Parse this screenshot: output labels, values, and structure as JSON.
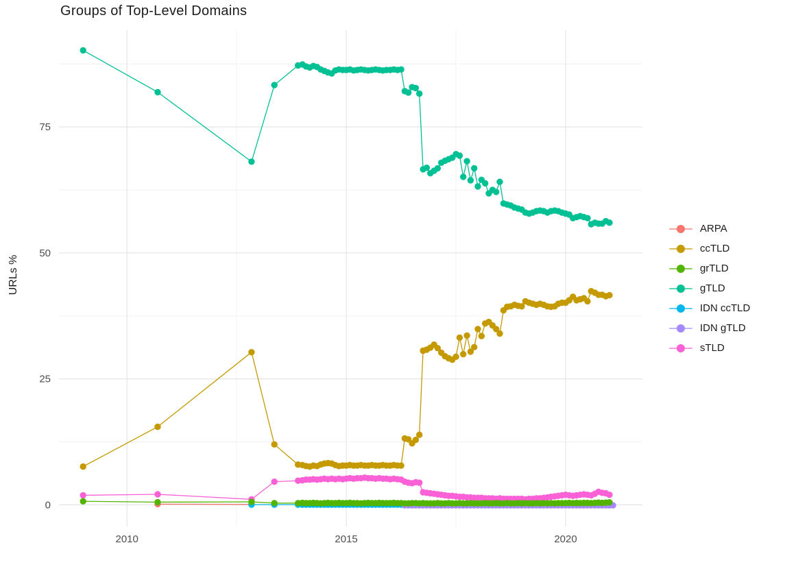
{
  "chart_data": {
    "type": "scatter",
    "title": "Groups of Top-Level Domains",
    "xlabel": "",
    "ylabel": "URLs %",
    "x_domain": [
      2008.45,
      2021.75
    ],
    "y_domain": [
      -4.3,
      94.2
    ],
    "grid": "on",
    "legend_position": "right",
    "x_ticks": [
      {
        "v": 2010,
        "label": "2010"
      },
      {
        "v": 2015,
        "label": "2015"
      },
      {
        "v": 2020,
        "label": "2020"
      }
    ],
    "x_minor": [
      2012.5,
      2017.5
    ],
    "y_ticks": [
      {
        "v": 0,
        "label": "0"
      },
      {
        "v": 25,
        "label": "25"
      },
      {
        "v": 50,
        "label": "50"
      },
      {
        "v": 75,
        "label": "75"
      }
    ],
    "y_minor": [
      12.5,
      37.5,
      62.5,
      87.5
    ],
    "draw_order": [
      "ARPA",
      "IDN ccTLD",
      "IDN gTLD",
      "sTLD",
      "ccTLD",
      "gTLD",
      "grTLD"
    ],
    "series": [
      {
        "name": "ARPA",
        "color": "#F8766D",
        "segments": [
          {
            "x": [
              2010.7,
              2012.84
            ],
            "y": [
              0.15,
              0.1
            ]
          }
        ]
      },
      {
        "name": "ccTLD",
        "color": "#C49A00",
        "segments": [
          {
            "x": [
              2009.0,
              2010.7,
              2012.84,
              2013.36,
              2013.9
            ],
            "y": [
              7.6,
              15.5,
              30.3,
              12.0,
              8.0
            ]
          },
          {
            "x_start": 2014.0,
            "x_step": 0.08333,
            "y": [
              7.9,
              7.7,
              7.6,
              7.8,
              7.7,
              8.0,
              8.2,
              8.3,
              8.2,
              7.9,
              7.7,
              7.8,
              7.8,
              7.9,
              7.8,
              7.8,
              7.9,
              7.8,
              7.8,
              7.9,
              7.8,
              7.8,
              7.9,
              7.8,
              7.8,
              7.9,
              7.8,
              7.8,
              13.2,
              13.0,
              12.2,
              12.9,
              13.9,
              30.6,
              30.8,
              31.2,
              31.8,
              31.1,
              30.2,
              29.5,
              29.1,
              28.8,
              29.4,
              33.2,
              29.9,
              33.6,
              30.4,
              31.3,
              34.9,
              33.5,
              36.0,
              36.3,
              35.6,
              34.9,
              34.0,
              38.6,
              39.3,
              39.4,
              39.7,
              39.5,
              39.4,
              40.4,
              40.1,
              39.9,
              39.7,
              39.9,
              39.7,
              39.4,
              39.3,
              39.4,
              39.9,
              40.1,
              40.1,
              40.6,
              41.3,
              40.6,
              40.8,
              41.0,
              40.4,
              42.4,
              42.1,
              41.7,
              41.7,
              41.4,
              41.6
            ]
          }
        ]
      },
      {
        "name": "grTLD",
        "color": "#53B400",
        "segments": [
          {
            "x": [
              2009.0,
              2010.7,
              2012.84,
              2013.36,
              2013.9
            ],
            "y": [
              0.7,
              0.55,
              0.6,
              0.35,
              0.35
            ]
          },
          {
            "x_start": 2014.0,
            "x_step": 0.08333,
            "y": [
              0.4,
              0.35,
              0.35,
              0.4,
              0.35,
              0.3,
              0.35,
              0.4,
              0.35,
              0.35,
              0.4,
              0.35,
              0.35,
              0.4,
              0.35,
              0.35,
              0.3,
              0.35,
              0.4,
              0.35,
              0.35,
              0.4,
              0.35,
              0.35,
              0.35,
              0.4,
              0.35,
              0.35,
              0.3,
              0.3,
              0.35,
              0.35,
              0.3,
              0.35,
              0.3,
              0.3,
              0.3,
              0.35,
              0.3,
              0.3,
              0.35,
              0.3,
              0.3,
              0.35,
              0.3,
              0.3,
              0.35,
              0.3,
              0.3,
              0.3,
              0.35,
              0.3,
              0.3,
              0.35,
              0.3,
              0.3,
              0.35,
              0.3,
              0.3,
              0.35,
              0.3,
              0.35,
              0.3,
              0.3,
              0.35,
              0.3,
              0.35,
              0.3,
              0.35,
              0.3,
              0.35,
              0.35,
              0.35,
              0.4,
              0.35,
              0.4,
              0.35,
              0.4,
              0.4,
              0.35,
              0.4,
              0.45,
              0.4,
              0.45,
              0.5
            ]
          }
        ]
      },
      {
        "name": "gTLD",
        "color": "#00C094",
        "segments": [
          {
            "x": [
              2009.0,
              2010.7,
              2012.84,
              2013.36,
              2013.9
            ],
            "y": [
              90.2,
              81.9,
              68.1,
              83.3,
              87.2
            ]
          },
          {
            "x_start": 2014.0,
            "x_step": 0.08333,
            "y": [
              87.4,
              87.0,
              86.8,
              87.1,
              86.9,
              86.4,
              86.1,
              85.8,
              85.6,
              86.2,
              86.4,
              86.3,
              86.3,
              86.4,
              86.2,
              86.3,
              86.4,
              86.3,
              86.2,
              86.3,
              86.4,
              86.3,
              86.2,
              86.3,
              86.3,
              86.4,
              86.3,
              86.4,
              82.1,
              81.8,
              82.9,
              82.7,
              81.6,
              66.6,
              66.9,
              65.8,
              66.3,
              66.8,
              67.9,
              68.3,
              68.6,
              68.9,
              69.6,
              69.3,
              65.1,
              68.2,
              64.4,
              66.8,
              63.2,
              64.5,
              63.8,
              61.8,
              62.5,
              62.1,
              64.1,
              59.8,
              59.6,
              59.4,
              59.0,
              58.8,
              58.6,
              58.0,
              57.8,
              58.0,
              58.3,
              58.4,
              58.3,
              58.0,
              58.3,
              58.4,
              58.3,
              58.0,
              57.8,
              57.6,
              56.9,
              57.1,
              57.3,
              57.1,
              56.9,
              55.7,
              56.0,
              55.8,
              55.8,
              56.3,
              56.0
            ]
          }
        ]
      },
      {
        "name": "IDN ccTLD",
        "color": "#00B6EB",
        "segments": [
          {
            "x": [
              2012.84,
              2013.36,
              2013.9
            ],
            "y": [
              0.05,
              0.05,
              0.05
            ]
          },
          {
            "x_start": 2014.0,
            "x_step": 0.08333,
            "n": 85,
            "y_const": 0.05
          }
        ]
      },
      {
        "name": "IDN gTLD",
        "color": "#A58AFF",
        "segments": [
          {
            "x_start": 2016.33,
            "x_step": 0.08333,
            "n": 58,
            "y_const": -0.1
          }
        ]
      },
      {
        "name": "sTLD",
        "color": "#FB61D7",
        "segments": [
          {
            "x": [
              2009.0,
              2010.7,
              2012.84,
              2013.36,
              2013.9
            ],
            "y": [
              1.9,
              2.1,
              1.1,
              4.6,
              4.8
            ]
          },
          {
            "x_start": 2014.0,
            "x_step": 0.08333,
            "y": [
              4.9,
              5.0,
              5.0,
              5.1,
              5.0,
              5.1,
              5.2,
              5.1,
              5.2,
              5.1,
              5.2,
              5.1,
              5.2,
              5.3,
              5.2,
              5.3,
              5.3,
              5.4,
              5.3,
              5.3,
              5.2,
              5.3,
              5.2,
              5.2,
              5.1,
              5.2,
              5.1,
              5.0,
              4.6,
              4.4,
              4.3,
              4.5,
              4.4,
              2.5,
              2.4,
              2.3,
              2.2,
              2.1,
              2.0,
              1.9,
              1.8,
              1.8,
              1.7,
              1.6,
              1.6,
              1.5,
              1.5,
              1.4,
              1.4,
              1.4,
              1.3,
              1.3,
              1.3,
              1.2,
              1.3,
              1.2,
              1.2,
              1.2,
              1.2,
              1.2,
              1.2,
              1.1,
              1.2,
              1.2,
              1.3,
              1.3,
              1.4,
              1.5,
              1.6,
              1.7,
              1.8,
              1.9,
              2.0,
              1.9,
              1.8,
              1.9,
              2.0,
              2.1,
              2.0,
              1.9,
              2.2,
              2.6,
              2.4,
              2.3,
              2.0
            ]
          }
        ]
      }
    ],
    "style": {
      "grid_major_color": "#E5E5E5",
      "grid_minor_color": "#F2F2F2",
      "tick_label_color": "#4D4D4D",
      "text_color": "#1c1c1c",
      "point_radius": 4.7,
      "line_width": 1.3
    }
  }
}
